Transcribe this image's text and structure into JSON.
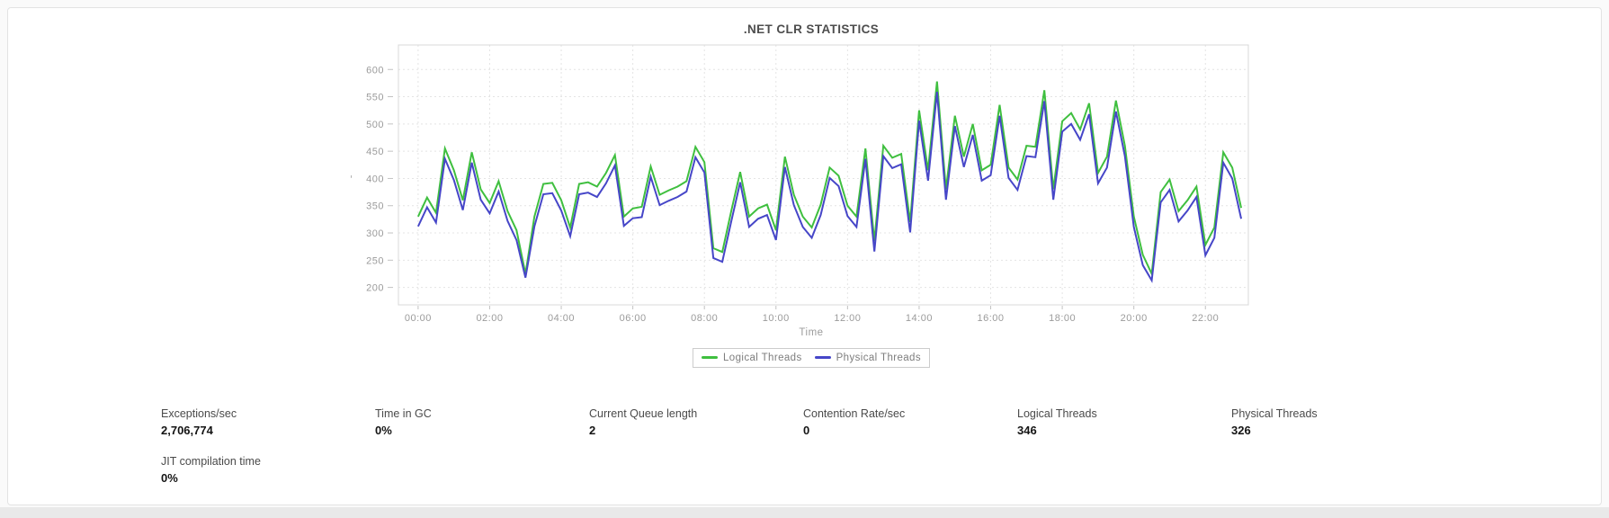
{
  "chart": {
    "title": ".NET CLR STATISTICS",
    "x_axis_label": "Time",
    "y_axis_label": ",",
    "legend": {
      "items": [
        {
          "label": "Logical Threads"
        },
        {
          "label": "Physical Threads"
        }
      ]
    }
  },
  "chart_data": {
    "type": "line",
    "title": ".NET CLR STATISTICS",
    "xlabel": "Time",
    "ylabel": "",
    "x_start_hour": 0,
    "x_step_minutes": 15,
    "x_tick_labels": [
      "00:00",
      "02:00",
      "04:00",
      "06:00",
      "08:00",
      "10:00",
      "12:00",
      "14:00",
      "16:00",
      "18:00",
      "20:00",
      "22:00"
    ],
    "y_ticks": [
      200,
      250,
      300,
      350,
      400,
      450,
      500,
      550,
      600
    ],
    "ylim": [
      168,
      645
    ],
    "grid": true,
    "legend_position": "bottom",
    "series": [
      {
        "name": "Logical Threads",
        "color": "#3fbf3f",
        "values": [
          330,
          365,
          337,
          455,
          415,
          360,
          448,
          380,
          355,
          395,
          340,
          305,
          225,
          330,
          390,
          392,
          360,
          310,
          390,
          393,
          385,
          410,
          443,
          330,
          345,
          348,
          422,
          370,
          378,
          385,
          395,
          458,
          430,
          272,
          265,
          340,
          412,
          330,
          345,
          352,
          305,
          440,
          370,
          330,
          310,
          352,
          420,
          405,
          350,
          330,
          455,
          285,
          460,
          438,
          445,
          320,
          525,
          415,
          578,
          380,
          515,
          440,
          500,
          415,
          425,
          535,
          420,
          398,
          460,
          458,
          562,
          380,
          505,
          520,
          490,
          538,
          410,
          440,
          543,
          460,
          330,
          260,
          225,
          375,
          398,
          340,
          360,
          385,
          278,
          310,
          448,
          420,
          346
        ]
      },
      {
        "name": "Physical Threads",
        "color": "#4646c8",
        "values": [
          312,
          347,
          319,
          436,
          397,
          342,
          429,
          361,
          336,
          376,
          322,
          287,
          218,
          312,
          371,
          373,
          341,
          294,
          371,
          374,
          366,
          391,
          424,
          313,
          327,
          329,
          403,
          351,
          359,
          366,
          376,
          439,
          411,
          254,
          247,
          321,
          393,
          311,
          326,
          333,
          287,
          421,
          351,
          311,
          291,
          333,
          401,
          386,
          331,
          311,
          436,
          266,
          441,
          419,
          426,
          301,
          506,
          396,
          559,
          361,
          496,
          421,
          480,
          396,
          406,
          515,
          401,
          379,
          441,
          439,
          542,
          361,
          486,
          500,
          471,
          518,
          391,
          420,
          523,
          441,
          311,
          241,
          213,
          356,
          379,
          321,
          341,
          366,
          259,
          291,
          429,
          400,
          326
        ]
      }
    ]
  },
  "stats": {
    "items": [
      {
        "label": "Exceptions/sec",
        "value": "2,706,774"
      },
      {
        "label": "Time in GC",
        "value": "0%"
      },
      {
        "label": "Current Queue length",
        "value": "2"
      },
      {
        "label": "Contention Rate/sec",
        "value": "0"
      },
      {
        "label": "Logical Threads",
        "value": "346"
      },
      {
        "label": "Physical Threads",
        "value": "326"
      },
      {
        "label": "JIT compilation time",
        "value": "0%"
      }
    ]
  }
}
